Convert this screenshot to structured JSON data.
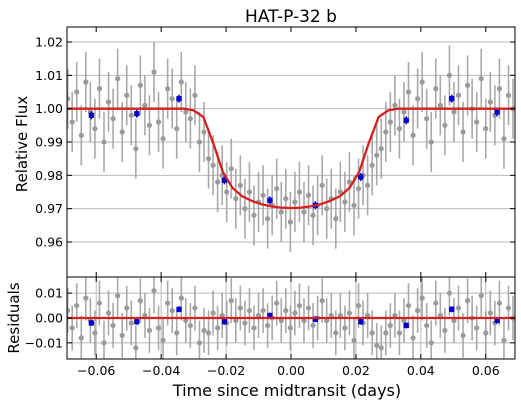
{
  "chart_data": [
    {
      "type": "scatter",
      "title": "HAT-P-32 b",
      "xlabel": "",
      "ylabel": "Relative Flux",
      "xlim": [
        -0.069,
        0.069
      ],
      "ylim": [
        0.9495,
        1.0245
      ],
      "grid": "horizontal",
      "x_ticks": [
        -0.06,
        -0.04,
        -0.02,
        0.0,
        0.02,
        0.04,
        0.06
      ],
      "x_tick_labels": [],
      "y_ticks": [
        0.96,
        0.97,
        0.98,
        0.99,
        1.0,
        1.01,
        1.02
      ],
      "y_tick_labels": [
        "0.96",
        "0.97",
        "0.98",
        "0.99",
        "1.00",
        "1.01",
        "1.02"
      ],
      "colors": {
        "raw": "#9a9a9a",
        "binned": "#0000cc",
        "model": "#d62020"
      },
      "series": [
        {
          "kind": "raw_points_with_errorbars",
          "x": [
            -0.0688,
            -0.0674,
            -0.066,
            -0.0646,
            -0.0632,
            -0.0618,
            -0.0604,
            -0.059,
            -0.0576,
            -0.0562,
            -0.0548,
            -0.0534,
            -0.052,
            -0.0506,
            -0.0492,
            -0.0478,
            -0.0464,
            -0.045,
            -0.0436,
            -0.0422,
            -0.0408,
            -0.0394,
            -0.038,
            -0.0366,
            -0.0352,
            -0.0338,
            -0.0324,
            -0.031,
            -0.0296,
            -0.0282,
            -0.0268,
            -0.0254,
            -0.024,
            -0.0226,
            -0.0212,
            -0.0198,
            -0.0184,
            -0.017,
            -0.0156,
            -0.0142,
            -0.0128,
            -0.0114,
            -0.01,
            -0.0086,
            -0.0072,
            -0.0058,
            -0.0044,
            -0.003,
            -0.0016,
            -0.0002,
            0.0012,
            0.0026,
            0.004,
            0.0054,
            0.0068,
            0.0082,
            0.0096,
            0.011,
            0.0124,
            0.0138,
            0.0152,
            0.0166,
            0.018,
            0.0194,
            0.0208,
            0.0222,
            0.0236,
            0.025,
            0.0264,
            0.0278,
            0.0292,
            0.0306,
            0.032,
            0.0334,
            0.0348,
            0.0362,
            0.0376,
            0.039,
            0.0404,
            0.0418,
            0.0432,
            0.0446,
            0.046,
            0.0474,
            0.0488,
            0.0502,
            0.0516,
            0.053,
            0.0544,
            0.0558,
            0.0572,
            0.0586,
            0.06,
            0.0614,
            0.0628,
            0.0642,
            0.0656,
            0.067,
            0.0684
          ],
          "y": [
            1.003,
            0.996,
            1.005,
            0.992,
            1.008,
            0.999,
            0.994,
            1.006,
            0.99,
            1.002,
            0.997,
            1.009,
            0.993,
            1.004,
            0.998,
            0.988,
            1.007,
            1.001,
            0.995,
            1.011,
            0.996,
            0.991,
            1.006,
            1.003,
            0.994,
            1.008,
            0.999,
            0.997,
            1.004,
            0.99,
            0.993,
            0.985,
            0.983,
            0.978,
            0.98,
            0.975,
            0.982,
            0.973,
            0.977,
            0.97,
            0.975,
            0.968,
            0.972,
            0.974,
            0.967,
            0.971,
            0.976,
            0.969,
            0.973,
            0.966,
            0.972,
            0.975,
            0.969,
            0.974,
            0.968,
            0.971,
            0.977,
            0.97,
            0.973,
            0.967,
            0.975,
            0.972,
            0.978,
            0.971,
            0.976,
            0.98,
            0.977,
            0.983,
            0.986,
            0.988,
            0.993,
            0.996,
            1.001,
            0.994,
            0.999,
            1.005,
            0.992,
            1.003,
            1.008,
            0.997,
            0.99,
            1.006,
            1.001,
            0.995,
            1.01,
            0.999,
            1.004,
            0.993,
            1.007,
            1.0,
            0.996,
            1.009,
            0.994,
            1.002,
            0.998,
            1.006,
            0.991,
            1.004,
            1.0
          ],
          "yerr": 0.009
        },
        {
          "kind": "binned_points",
          "x": [
            -0.0615,
            -0.0475,
            -0.0345,
            -0.0205,
            -0.0065,
            0.0075,
            0.0215,
            0.0355,
            0.0495,
            0.0635
          ],
          "y": [
            0.998,
            0.9985,
            1.003,
            0.9785,
            0.9725,
            0.971,
            0.9795,
            0.9965,
            1.003,
            0.999
          ],
          "yerr": 0.0012
        },
        {
          "kind": "transit_model",
          "x": [
            -0.069,
            -0.066,
            -0.063,
            -0.06,
            -0.057,
            -0.054,
            -0.051,
            -0.048,
            -0.045,
            -0.042,
            -0.039,
            -0.036,
            -0.033,
            -0.03,
            -0.027,
            -0.024,
            -0.021,
            -0.018,
            -0.015,
            -0.012,
            -0.009,
            -0.006,
            -0.003,
            0.0,
            0.003,
            0.006,
            0.009,
            0.012,
            0.015,
            0.018,
            0.021,
            0.024,
            0.027,
            0.03,
            0.033,
            0.036,
            0.039,
            0.042,
            0.045,
            0.048,
            0.051,
            0.054,
            0.057,
            0.06,
            0.063,
            0.066,
            0.069
          ],
          "y": [
            1.0,
            1.0,
            1.0,
            1.0,
            1.0,
            1.0,
            1.0,
            1.0,
            1.0,
            1.0,
            1.0,
            1.0,
            1.0,
            0.9995,
            0.9975,
            0.9898,
            0.981,
            0.9762,
            0.9737,
            0.9723,
            0.9713,
            0.9707,
            0.9703,
            0.9702,
            0.9703,
            0.9707,
            0.9713,
            0.9723,
            0.9737,
            0.9762,
            0.981,
            0.9898,
            0.9975,
            0.9995,
            1.0,
            1.0,
            1.0,
            1.0,
            1.0,
            1.0,
            1.0,
            1.0,
            1.0,
            1.0,
            1.0,
            1.0,
            1.0
          ]
        }
      ]
    },
    {
      "type": "scatter",
      "title": "",
      "xlabel": "Time since midtransit (days)",
      "ylabel": "Residuals",
      "xlim": [
        -0.069,
        0.069
      ],
      "ylim": [
        -0.0165,
        0.0165
      ],
      "grid": "both",
      "x_ticks": [
        -0.06,
        -0.04,
        -0.02,
        0.0,
        0.02,
        0.04,
        0.06
      ],
      "x_tick_labels": [
        "−0.06",
        "−0.04",
        "−0.02",
        "0.00",
        "0.02",
        "0.04",
        "0.06"
      ],
      "y_ticks": [
        -0.01,
        0.0,
        0.01
      ],
      "y_tick_labels": [
        "−0.01",
        "0.00",
        "0.01"
      ],
      "series": [
        {
          "kind": "raw_residuals_with_errorbars",
          "x": [
            -0.0688,
            -0.0674,
            -0.066,
            -0.0646,
            -0.0632,
            -0.0618,
            -0.0604,
            -0.059,
            -0.0576,
            -0.0562,
            -0.0548,
            -0.0534,
            -0.052,
            -0.0506,
            -0.0492,
            -0.0478,
            -0.0464,
            -0.045,
            -0.0436,
            -0.0422,
            -0.0408,
            -0.0394,
            -0.038,
            -0.0366,
            -0.0352,
            -0.0338,
            -0.0324,
            -0.031,
            -0.0296,
            -0.0282,
            -0.0268,
            -0.0254,
            -0.024,
            -0.0226,
            -0.0212,
            -0.0198,
            -0.0184,
            -0.017,
            -0.0156,
            -0.0142,
            -0.0128,
            -0.0114,
            -0.01,
            -0.0086,
            -0.0072,
            -0.0058,
            -0.0044,
            -0.003,
            -0.0016,
            -0.0002,
            0.0012,
            0.0026,
            0.004,
            0.0054,
            0.0068,
            0.0082,
            0.0096,
            0.011,
            0.0124,
            0.0138,
            0.0152,
            0.0166,
            0.018,
            0.0194,
            0.0208,
            0.0222,
            0.0236,
            0.025,
            0.0264,
            0.0278,
            0.0292,
            0.0306,
            0.032,
            0.0334,
            0.0348,
            0.0362,
            0.0376,
            0.039,
            0.0404,
            0.0418,
            0.0432,
            0.0446,
            0.046,
            0.0474,
            0.0488,
            0.0502,
            0.0516,
            0.053,
            0.0544,
            0.0558,
            0.0572,
            0.0586,
            0.06,
            0.0614,
            0.0628,
            0.0642,
            0.0656,
            0.067,
            0.0684
          ],
          "y": [
            0.003,
            -0.004,
            0.005,
            -0.008,
            0.008,
            -0.001,
            -0.006,
            0.006,
            -0.01,
            0.002,
            -0.003,
            0.009,
            -0.007,
            0.004,
            -0.002,
            -0.012,
            0.007,
            0.001,
            -0.005,
            0.011,
            -0.004,
            -0.009,
            0.006,
            0.003,
            -0.006,
            0.008,
            -0.001,
            -0.003,
            0.004,
            -0.01,
            -0.005,
            -0.006,
            0.002,
            -0.004,
            0.001,
            -0.002,
            0.007,
            -0.001,
            0.004,
            -0.002,
            0.003,
            -0.004,
            0.001,
            0.003,
            -0.003,
            0.0,
            0.006,
            -0.001,
            0.003,
            -0.004,
            0.002,
            0.005,
            -0.001,
            0.004,
            -0.003,
            0.0,
            0.007,
            -0.001,
            0.001,
            -0.006,
            0.001,
            -0.004,
            0.002,
            -0.009,
            0.005,
            -0.002,
            0.001,
            -0.006,
            -0.011,
            -0.012,
            -0.006,
            -0.003,
            0.001,
            -0.006,
            -0.001,
            0.005,
            -0.008,
            0.003,
            0.008,
            -0.003,
            -0.01,
            0.006,
            0.001,
            -0.005,
            0.01,
            -0.001,
            0.004,
            -0.007,
            0.007,
            0.0,
            -0.004,
            0.009,
            -0.006,
            0.002,
            -0.002,
            0.006,
            -0.009,
            0.004,
            0.0
          ],
          "yerr": 0.009
        },
        {
          "kind": "binned_residuals",
          "x": [
            -0.0615,
            -0.0475,
            -0.0345,
            -0.0205,
            -0.0065,
            0.0075,
            0.0215,
            0.0355,
            0.0495,
            0.0635
          ],
          "y": [
            -0.002,
            -0.0015,
            0.0035,
            -0.0015,
            0.001,
            -0.0005,
            -0.0015,
            -0.003,
            0.0035,
            -0.001
          ],
          "yerr": 0.0012
        },
        {
          "kind": "zero_line",
          "x": [
            -0.069,
            0.069
          ],
          "y": [
            0.0,
            0.0
          ]
        }
      ]
    }
  ]
}
